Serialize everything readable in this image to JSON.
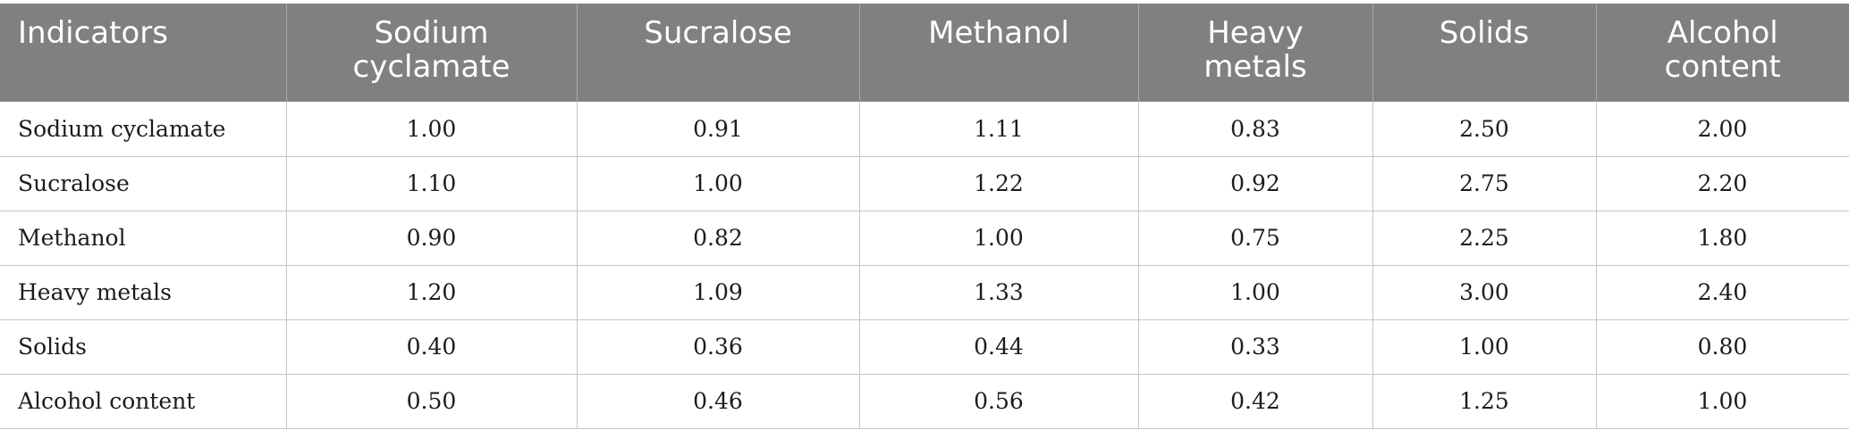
{
  "table": {
    "headers": [
      "Indicators",
      "Sodium cyclamate",
      "Sucralose",
      "Methanol",
      "Heavy metals",
      "Solids",
      "Alcohol content"
    ],
    "rows": [
      {
        "label": "Sodium cyclamate",
        "values": [
          "1.00",
          "0.91",
          "1.11",
          "0.83",
          "2.50",
          "2.00"
        ]
      },
      {
        "label": "Sucralose",
        "values": [
          "1.10",
          "1.00",
          "1.22",
          "0.92",
          "2.75",
          "2.20"
        ]
      },
      {
        "label": "Methanol",
        "values": [
          "0.90",
          "0.82",
          "1.00",
          "0.75",
          "2.25",
          "1.80"
        ]
      },
      {
        "label": "Heavy metals",
        "values": [
          "1.20",
          "1.09",
          "1.33",
          "1.00",
          "3.00",
          "2.40"
        ]
      },
      {
        "label": "Solids",
        "values": [
          "0.40",
          "0.36",
          "0.44",
          "0.33",
          "1.00",
          "0.80"
        ]
      },
      {
        "label": "Alcohol content",
        "values": [
          "0.50",
          "0.46",
          "0.56",
          "0.42",
          "1.25",
          "1.00"
        ]
      }
    ]
  },
  "colors": {
    "header_bg": "#7f807f",
    "header_text": "#ffffff",
    "grid_line": "#c4c4c4"
  }
}
